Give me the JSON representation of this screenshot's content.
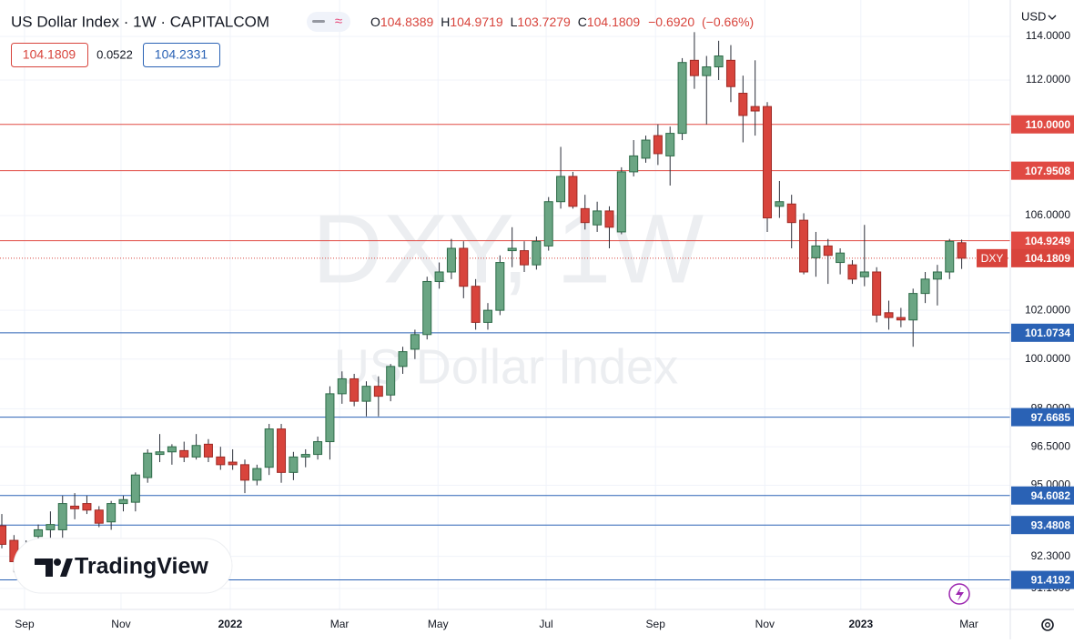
{
  "chart_data": {
    "type": "candlestick",
    "title": "US Dollar Index · 1W · CAPITALCOM",
    "symbol": "DXY",
    "currency": "USD",
    "watermark": {
      "symbol": "DXY, 1W",
      "name": "US Dollar Index"
    },
    "logo": "TradingView",
    "header": {
      "open_key": "O",
      "high_key": "H",
      "low_key": "L",
      "close_key": "C",
      "change": "−0.6920",
      "change_pct": "(−0.66%)"
    },
    "spread": 0.0522,
    "ask": 104.2331,
    "log_scale": true,
    "grid": true,
    "up_color": "#6aa583",
    "down_color": "#d8443c",
    "ylim": [
      90.33,
      115.7
    ],
    "yticks": [
      {
        "value": 114,
        "label": "114.0000"
      },
      {
        "value": 112,
        "label": "112.0000"
      },
      {
        "value": 106,
        "label": "106.0000"
      },
      {
        "value": 102,
        "label": "102.0000"
      },
      {
        "value": 100,
        "label": "100.0000"
      },
      {
        "value": 98,
        "label": "98.0000"
      },
      {
        "value": 96.5,
        "label": "96.5000"
      },
      {
        "value": 95,
        "label": "95.0000"
      },
      {
        "value": 92.3,
        "label": "92.3000"
      },
      {
        "value": 91.1,
        "label": "91.1000"
      }
    ],
    "xlim": [
      -0.15,
      83.0
    ],
    "xticks": [
      {
        "value": 1.87,
        "label": "Sep"
      },
      {
        "value": 9.81,
        "label": "Nov"
      },
      {
        "value": 18.8,
        "label": "2022"
      },
      {
        "value": 27.8,
        "label": "Mar"
      },
      {
        "value": 35.9,
        "label": "May"
      },
      {
        "value": 44.8,
        "label": "Jul"
      },
      {
        "value": 53.8,
        "label": "Sep"
      },
      {
        "value": 62.8,
        "label": "Nov"
      },
      {
        "value": 70.7,
        "label": "2023"
      },
      {
        "value": 79.6,
        "label": "Mar"
      }
    ],
    "levels": [
      {
        "value": 110,
        "label": "110.0000",
        "color": "#e04a43"
      },
      {
        "value": 107.9508,
        "label": "107.9508",
        "color": "#e04a43"
      },
      {
        "value": 104.9249,
        "label": "104.9249",
        "color": "#e04a43"
      },
      {
        "value": 101.0734,
        "label": "101.0734",
        "color": "#2a62b5"
      },
      {
        "value": 97.6685,
        "label": "97.6685",
        "color": "#2a62b5"
      },
      {
        "value": 94.6082,
        "label": "94.6082",
        "color": "#2a62b5"
      },
      {
        "value": 93.4808,
        "label": "93.4808",
        "color": "#2a62b5"
      },
      {
        "value": 91.4192,
        "label": "91.4192",
        "color": "#2a62b5"
      }
    ],
    "open": [
      93.45,
      92.9,
      92.2,
      93.05,
      93.3,
      93.3,
      94.2,
      94.3,
      94.05,
      93.6,
      94.3,
      94.35,
      95.3,
      96.2,
      96.3,
      96.35,
      96.1,
      96.6,
      96.1,
      95.9,
      95.8,
      95.2,
      95.7,
      97.2,
      95.5,
      96.1,
      96.2,
      96.7,
      98.6,
      99.2,
      98.3,
      98.9,
      98.55,
      99.7,
      100.4,
      101.0,
      103.2,
      103.6,
      104.6,
      103.0,
      101.5,
      102.0,
      104.5,
      104.5,
      103.9,
      104.7,
      106.6,
      107.7,
      106.3,
      105.6,
      106.2,
      105.3,
      107.9,
      108.5,
      109.5,
      108.6,
      109.6,
      112.9,
      112.2,
      112.6,
      112.9,
      111.4,
      110.8,
      110.8,
      106.4,
      106.5,
      105.8,
      104.2,
      104.7,
      104.0,
      103.9,
      103.4,
      103.6,
      101.9,
      101.7,
      101.6,
      102.7,
      103.3,
      103.6,
      104.8389
    ],
    "high": [
      93.9,
      93.1,
      92.9,
      93.5,
      94.0,
      94.6,
      94.7,
      94.6,
      94.2,
      94.4,
      94.6,
      95.5,
      96.4,
      97.0,
      96.6,
      96.7,
      97.0,
      96.8,
      96.5,
      96.4,
      96.0,
      95.8,
      97.4,
      97.4,
      96.3,
      96.4,
      96.9,
      98.9,
      99.5,
      99.4,
      99.1,
      99.3,
      99.8,
      100.5,
      101.2,
      103.4,
      104.0,
      105.0,
      104.9,
      103.3,
      102.3,
      104.3,
      105.5,
      104.9,
      105.1,
      106.8,
      109.0,
      107.9,
      106.9,
      106.6,
      106.4,
      108.1,
      109.3,
      109.5,
      110.0,
      109.9,
      113.0,
      114.2,
      113.1,
      113.8,
      113.6,
      112.2,
      112.9,
      111.0,
      107.5,
      106.9,
      106.1,
      105.3,
      105.0,
      104.6,
      104.1,
      105.6,
      103.8,
      102.4,
      102.1,
      102.9,
      103.6,
      103.9,
      105.0,
      104.9719
    ],
    "low": [
      92.6,
      91.7,
      91.9,
      92.8,
      93.0,
      93.0,
      93.7,
      93.9,
      93.4,
      93.3,
      94.0,
      94.0,
      95.1,
      95.9,
      95.8,
      95.9,
      96.0,
      95.9,
      95.6,
      95.6,
      94.7,
      95.0,
      95.4,
      95.1,
      95.2,
      95.7,
      96.0,
      96.0,
      98.2,
      98.1,
      97.7,
      97.7,
      98.3,
      99.4,
      100.0,
      100.8,
      102.9,
      103.3,
      102.5,
      101.2,
      101.2,
      101.8,
      103.8,
      103.6,
      103.7,
      104.5,
      106.3,
      106.3,
      105.4,
      105.3,
      104.6,
      105.2,
      107.7,
      108.3,
      108.2,
      107.3,
      109.3,
      111.6,
      110.0,
      112.0,
      111.0,
      109.2,
      109.5,
      105.3,
      105.9,
      104.6,
      103.5,
      103.4,
      103.1,
      103.5,
      103.1,
      103.0,
      101.5,
      101.2,
      101.3,
      100.5,
      102.3,
      102.2,
      103.3,
      103.7279
    ],
    "close": [
      92.75,
      92.1,
      92.6,
      93.3,
      93.5,
      94.3,
      94.1,
      94.05,
      93.55,
      94.3,
      94.45,
      95.4,
      96.25,
      96.3,
      96.5,
      96.1,
      96.55,
      96.1,
      95.8,
      95.8,
      95.2,
      95.65,
      97.2,
      95.5,
      96.1,
      96.2,
      96.7,
      98.6,
      99.2,
      98.3,
      98.9,
      98.5,
      99.7,
      100.3,
      101.0,
      103.2,
      103.6,
      104.6,
      103.0,
      101.5,
      102.0,
      104.0,
      104.6,
      103.9,
      104.9,
      106.6,
      107.7,
      106.4,
      105.7,
      106.2,
      105.5,
      107.9,
      108.6,
      109.3,
      108.7,
      109.6,
      112.8,
      112.2,
      112.6,
      113.1,
      111.7,
      110.4,
      110.6,
      105.9,
      106.6,
      105.7,
      103.6,
      104.7,
      104.3,
      104.4,
      103.3,
      103.6,
      101.8,
      101.7,
      101.6,
      102.7,
      103.3,
      103.6,
      104.9,
      104.1809
    ]
  }
}
